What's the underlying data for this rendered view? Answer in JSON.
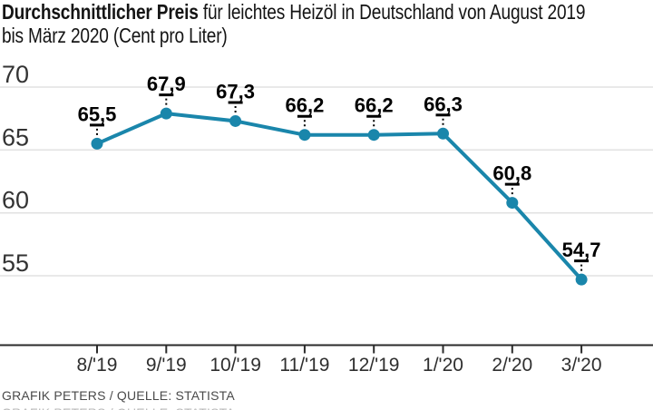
{
  "header": {
    "title_bold": "Durchschnittlicher Preis",
    "title_rest_line1": " für leichtes Heizöl in Deutschland von August 2019",
    "title_rest_line2": "bis März 2020 (Cent pro Liter)"
  },
  "footer": {
    "credit": "GRAFIK PETERS / QUELLE: STATISTA"
  },
  "chart_data": {
    "type": "line",
    "title": "Durchschnittlicher Preis für leichtes Heizöl in Deutschland von August 2019 bis März 2020 (Cent pro Liter)",
    "categories": [
      "8/'19",
      "9/'19",
      "10/'19",
      "11/'19",
      "12/'19",
      "1/'20",
      "2/'20",
      "3/'20"
    ],
    "values": [
      65.5,
      67.9,
      67.3,
      66.2,
      66.2,
      66.3,
      60.8,
      54.7
    ],
    "point_labels": [
      "65,5",
      "67,9",
      "67,3",
      "66,2",
      "66,2",
      "66,3",
      "60,8",
      "54,7"
    ],
    "y_ticks": [
      70,
      65,
      60,
      55
    ],
    "ylim": [
      50,
      71
    ],
    "xlabel": "",
    "ylabel": "",
    "grid": true,
    "legend": false,
    "line_color": "#1a86ab",
    "grid_color": "#e2e2e2",
    "axis_color": "#2b2b2b",
    "callout_color": "#000000"
  }
}
